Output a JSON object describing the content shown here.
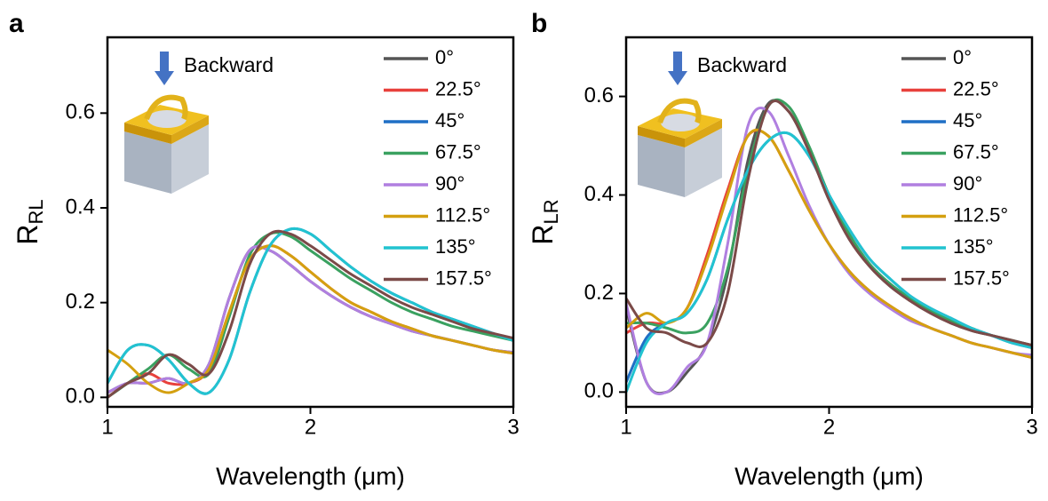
{
  "chart_data": [
    {
      "type": "line",
      "label": "a",
      "annotation": "Backward",
      "xlabel": "Wavelength (μm)",
      "ylabel": "R",
      "ylabel_sub": "RL",
      "x": [
        1,
        1.1,
        1.2,
        1.3,
        1.4,
        1.5,
        1.6,
        1.7,
        1.8,
        1.9,
        2,
        2.1,
        2.2,
        2.3,
        2.4,
        2.5,
        2.6,
        2.7,
        2.8,
        2.9,
        3
      ],
      "xlim": [
        1,
        3
      ],
      "xticks": [
        1,
        2,
        3
      ],
      "ylim": [
        -0.02,
        0.76
      ],
      "yticks": [
        {
          "value": 0,
          "label": "0.0"
        },
        0.2,
        0.4,
        0.6
      ],
      "series": [
        {
          "name": "0°",
          "color": "#555555",
          "values": [
            0.01,
            0.03,
            0.03,
            0.04,
            0.03,
            0.07,
            0.21,
            0.31,
            0.31,
            0.28,
            0.245,
            0.215,
            0.19,
            0.17,
            0.155,
            0.14,
            0.13,
            0.12,
            0.11,
            0.1,
            0.095
          ]
        },
        {
          "name": "22.5°",
          "color": "#e8413c",
          "values": [
            0.0,
            0.03,
            0.05,
            0.03,
            0.03,
            0.06,
            0.18,
            0.29,
            0.32,
            0.3,
            0.265,
            0.23,
            0.2,
            0.18,
            0.16,
            0.145,
            0.13,
            0.12,
            0.11,
            0.1,
            0.093
          ]
        },
        {
          "name": "45°",
          "color": "#1f6fc5",
          "values": [
            0.03,
            0.1,
            0.11,
            0.08,
            0.03,
            0.01,
            0.08,
            0.22,
            0.32,
            0.355,
            0.345,
            0.31,
            0.275,
            0.245,
            0.22,
            0.2,
            0.18,
            0.165,
            0.15,
            0.135,
            0.12
          ]
        },
        {
          "name": "67.5°",
          "color": "#3aa160",
          "values": [
            0.0,
            0.03,
            0.06,
            0.09,
            0.06,
            0.05,
            0.17,
            0.3,
            0.345,
            0.34,
            0.31,
            0.28,
            0.25,
            0.225,
            0.2,
            0.18,
            0.165,
            0.15,
            0.14,
            0.13,
            0.12
          ]
        },
        {
          "name": "90°",
          "color": "#b07fe0",
          "values": [
            0.01,
            0.03,
            0.03,
            0.04,
            0.03,
            0.07,
            0.21,
            0.31,
            0.31,
            0.28,
            0.245,
            0.215,
            0.19,
            0.17,
            0.155,
            0.14,
            0.13,
            0.12,
            0.11,
            0.1,
            0.095
          ]
        },
        {
          "name": "112.5°",
          "color": "#d4a010",
          "values": [
            0.1,
            0.07,
            0.03,
            0.01,
            0.03,
            0.06,
            0.18,
            0.29,
            0.32,
            0.3,
            0.265,
            0.23,
            0.2,
            0.18,
            0.16,
            0.145,
            0.13,
            0.12,
            0.11,
            0.1,
            0.093
          ]
        },
        {
          "name": "135°",
          "color": "#22c3d0",
          "values": [
            0.03,
            0.1,
            0.11,
            0.08,
            0.03,
            0.01,
            0.08,
            0.22,
            0.32,
            0.355,
            0.345,
            0.31,
            0.275,
            0.245,
            0.22,
            0.2,
            0.18,
            0.165,
            0.15,
            0.135,
            0.12
          ]
        },
        {
          "name": "157.5°",
          "color": "#7b4a48",
          "values": [
            0.0,
            0.03,
            0.05,
            0.09,
            0.07,
            0.05,
            0.14,
            0.28,
            0.345,
            0.345,
            0.32,
            0.29,
            0.26,
            0.235,
            0.21,
            0.19,
            0.175,
            0.16,
            0.145,
            0.135,
            0.125
          ]
        }
      ]
    },
    {
      "type": "line",
      "label": "b",
      "annotation": "Backward",
      "xlabel": "Wavelength (μm)",
      "ylabel": "R",
      "ylabel_sub": "LR",
      "x": [
        1,
        1.1,
        1.2,
        1.3,
        1.4,
        1.5,
        1.6,
        1.7,
        1.8,
        1.9,
        2,
        2.1,
        2.2,
        2.3,
        2.4,
        2.5,
        2.6,
        2.7,
        2.8,
        2.9,
        3
      ],
      "xlim": [
        1,
        3
      ],
      "xticks": [
        1,
        2,
        3
      ],
      "ylim": [
        -0.03,
        0.72
      ],
      "yticks": [
        {
          "value": 0,
          "label": "0.0"
        },
        0.2,
        0.4,
        0.6
      ],
      "series": [
        {
          "name": "0°",
          "color": "#555555",
          "values": [
            0.17,
            0.02,
            0.0,
            0.04,
            0.1,
            0.24,
            0.47,
            0.585,
            0.57,
            0.49,
            0.39,
            0.31,
            0.255,
            0.215,
            0.185,
            0.16,
            0.14,
            0.125,
            0.115,
            0.105,
            0.095
          ]
        },
        {
          "name": "22.5°",
          "color": "#e8413c",
          "values": [
            0.12,
            0.14,
            0.14,
            0.17,
            0.28,
            0.41,
            0.52,
            0.52,
            0.45,
            0.37,
            0.3,
            0.245,
            0.205,
            0.175,
            0.15,
            0.13,
            0.115,
            0.1,
            0.09,
            0.08,
            0.07
          ]
        },
        {
          "name": "45°",
          "color": "#1f6fc5",
          "values": [
            0.02,
            0.11,
            0.14,
            0.16,
            0.23,
            0.35,
            0.45,
            0.51,
            0.525,
            0.48,
            0.4,
            0.33,
            0.27,
            0.23,
            0.195,
            0.17,
            0.15,
            0.13,
            0.115,
            0.1,
            0.09
          ]
        },
        {
          "name": "67.5°",
          "color": "#3aa160",
          "values": [
            0.14,
            0.14,
            0.13,
            0.12,
            0.14,
            0.25,
            0.45,
            0.58,
            0.58,
            0.5,
            0.4,
            0.32,
            0.26,
            0.22,
            0.19,
            0.165,
            0.145,
            0.13,
            0.115,
            0.105,
            0.095
          ]
        },
        {
          "name": "90°",
          "color": "#b07fe0",
          "values": [
            0.18,
            0.02,
            0.0,
            0.05,
            0.1,
            0.3,
            0.54,
            0.57,
            0.48,
            0.38,
            0.3,
            0.24,
            0.2,
            0.17,
            0.145,
            0.13,
            0.115,
            0.1,
            0.09,
            0.08,
            0.075
          ]
        },
        {
          "name": "112.5°",
          "color": "#d4a010",
          "values": [
            0.13,
            0.16,
            0.14,
            0.17,
            0.27,
            0.4,
            0.52,
            0.52,
            0.45,
            0.37,
            0.3,
            0.245,
            0.205,
            0.175,
            0.15,
            0.13,
            0.115,
            0.1,
            0.09,
            0.08,
            0.07
          ]
        },
        {
          "name": "135°",
          "color": "#22c3d0",
          "values": [
            0.0,
            0.1,
            0.14,
            0.16,
            0.23,
            0.35,
            0.45,
            0.51,
            0.525,
            0.48,
            0.4,
            0.33,
            0.27,
            0.23,
            0.195,
            0.17,
            0.15,
            0.13,
            0.115,
            0.1,
            0.09
          ]
        },
        {
          "name": "157.5°",
          "color": "#7b4a48",
          "values": [
            0.19,
            0.13,
            0.12,
            0.1,
            0.1,
            0.2,
            0.43,
            0.58,
            0.57,
            0.49,
            0.39,
            0.31,
            0.255,
            0.215,
            0.185,
            0.16,
            0.14,
            0.125,
            0.115,
            0.105,
            0.095
          ]
        }
      ]
    }
  ]
}
